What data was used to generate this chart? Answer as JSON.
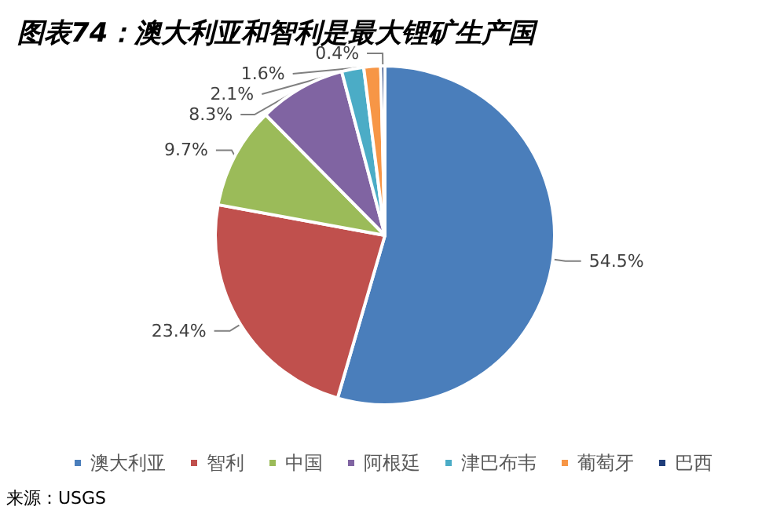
{
  "chart_data": {
    "type": "pie",
    "title": "图表74：澳大利亚和智利是最大锂矿生产国",
    "categories": [
      "澳大利亚",
      "智利",
      "中国",
      "阿根廷",
      "津巴布韦",
      "葡萄牙",
      "巴西"
    ],
    "values": [
      54.5,
      23.4,
      9.7,
      8.3,
      2.1,
      1.6,
      0.4
    ],
    "value_labels": [
      "54.5%",
      "23.4%",
      "9.7%",
      "8.3%",
      "2.1%",
      "1.6%",
      "0.4%"
    ],
    "colors": [
      "#4a7ebb",
      "#c0504d",
      "#9bbb59",
      "#8064a2",
      "#4bacc6",
      "#f79646",
      "#1f3d7a"
    ],
    "legend": "bottom",
    "annotations": [
      "来源：USGS"
    ]
  }
}
